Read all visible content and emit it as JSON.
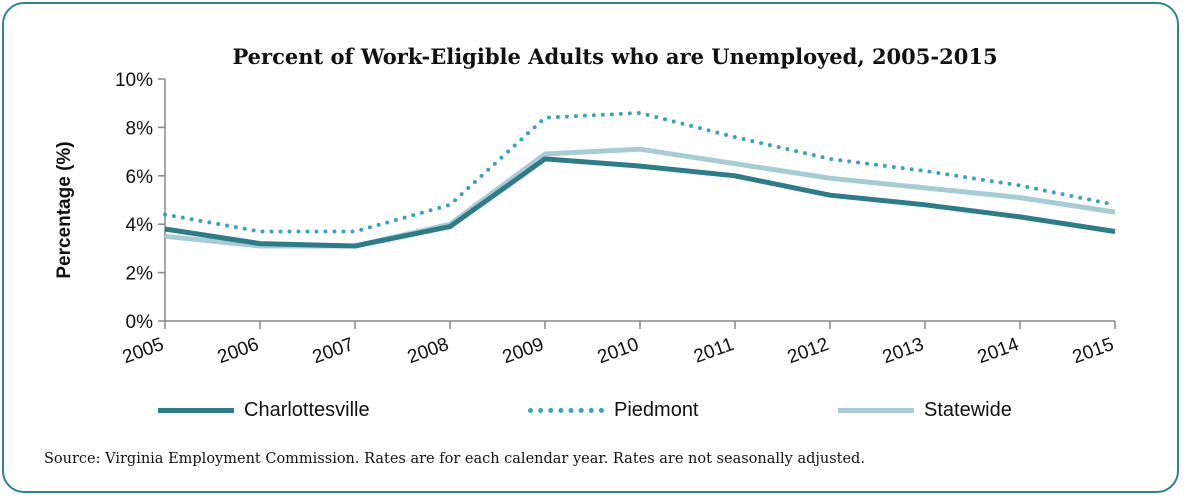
{
  "chart_data": {
    "type": "line",
    "title": "Percent of Work-Eligible Adults who are Unemployed, 2005-2015",
    "ylabel": "Percentage (%)",
    "xlabel": "",
    "x": [
      "2005",
      "2006",
      "2007",
      "2008",
      "2009",
      "2010",
      "2011",
      "2012",
      "2013",
      "2014",
      "2015"
    ],
    "ylim": [
      0,
      10
    ],
    "yticks": [
      "0%",
      "2%",
      "4%",
      "6%",
      "8%",
      "10%"
    ],
    "grid": false,
    "legend_position": "bottom",
    "series": [
      {
        "name": "Charlottesville",
        "color": "#2e7c88",
        "style": "solid-thick",
        "values": [
          3.8,
          3.2,
          3.1,
          3.9,
          6.7,
          6.4,
          6.0,
          5.2,
          4.8,
          4.3,
          3.7
        ]
      },
      {
        "name": "Piedmont",
        "color": "#3aa3b5",
        "style": "dotted",
        "values": [
          4.4,
          3.7,
          3.7,
          4.8,
          8.4,
          8.6,
          7.6,
          6.7,
          6.2,
          5.6,
          4.8
        ]
      },
      {
        "name": "Statewide",
        "color": "#a8cbd6",
        "style": "solid-thick",
        "values": [
          3.5,
          3.1,
          3.1,
          4.0,
          6.9,
          7.1,
          6.5,
          5.9,
          5.5,
          5.1,
          4.5
        ]
      }
    ]
  },
  "source_note": "Source: Virginia Employment Commission. Rates are for  each calendar year. Rates are not seasonally adjusted."
}
